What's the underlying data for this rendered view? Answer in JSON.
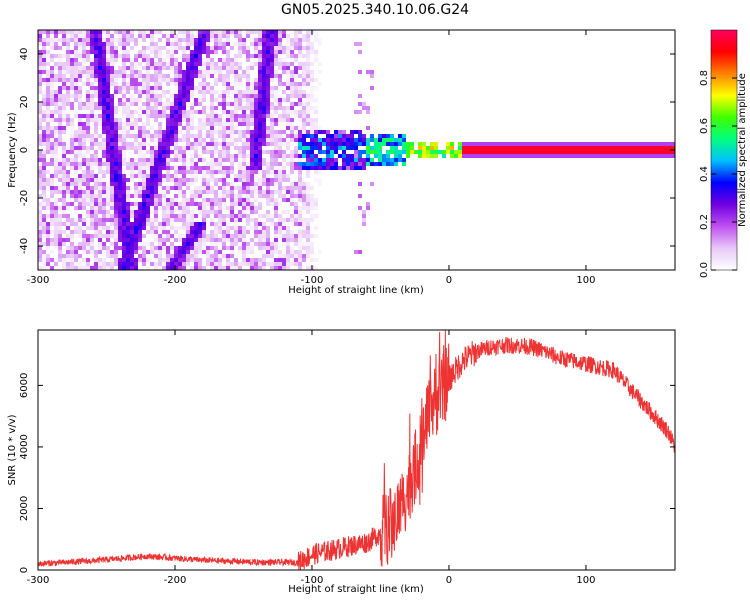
{
  "title": "GN05.2025.340.10.06.G24",
  "chart_data": [
    {
      "type": "heatmap",
      "xlabel": "Height of straight line (km)",
      "ylabel": "Frequency (Hz)",
      "xlim": [
        -300,
        165
      ],
      "ylim": [
        -50,
        50
      ],
      "xticks": [
        -300,
        -200,
        -100,
        0,
        100
      ],
      "yticks": [
        -40,
        -20,
        0,
        20,
        40
      ],
      "colorbar": {
        "label": "Normalized spectral amplitude",
        "range": [
          0,
          1
        ],
        "ticks": [
          0.0,
          0.2,
          0.4,
          0.6,
          0.8
        ],
        "colormap": [
          "#ffffff",
          "#e8c8f8",
          "#c050f0",
          "#7000e0",
          "#0000ff",
          "#00c0ff",
          "#00ff80",
          "#40ff00",
          "#ffff00",
          "#ff8000",
          "#ff0000",
          "#ff0060"
        ]
      },
      "features": [
        {
          "kind": "signal_band",
          "x_range": [
            -110,
            165
          ],
          "frequency": 0,
          "amplitude_near_line": 0.95
        },
        {
          "kind": "noise_region",
          "x_range": [
            -300,
            -100
          ],
          "frequency_range": [
            -50,
            50
          ]
        },
        {
          "kind": "streak",
          "x": [
            -258,
            -232
          ],
          "frequency": [
            50,
            -50
          ]
        },
        {
          "kind": "streak",
          "x": [
            -238,
            -178
          ],
          "frequency": [
            -50,
            50
          ]
        },
        {
          "kind": "streak",
          "x": [
            -203,
            -180
          ],
          "frequency": [
            -50,
            -30
          ]
        },
        {
          "kind": "streak",
          "x": [
            -142,
            -130
          ],
          "frequency": [
            -8,
            50
          ]
        }
      ]
    },
    {
      "type": "line",
      "xlabel": "Height of straight line (km)",
      "ylabel": "SNR (10 * v/v)",
      "xlim": [
        -300,
        165
      ],
      "ylim": [
        0,
        7800
      ],
      "xticks": [
        -300,
        -200,
        -100,
        0,
        100
      ],
      "yticks": [
        0,
        2000,
        4000,
        6000
      ],
      "color": "#ee3333",
      "x": [
        -300,
        -260,
        -220,
        -180,
        -140,
        -110,
        -100,
        -80,
        -60,
        -50,
        -40,
        -30,
        -25,
        -20,
        -15,
        -10,
        -5,
        0,
        10,
        20,
        30,
        40,
        50,
        60,
        70,
        80,
        100,
        120,
        130,
        140,
        150,
        160,
        165
      ],
      "y": [
        200,
        300,
        450,
        320,
        250,
        250,
        500,
        700,
        900,
        1200,
        1600,
        2600,
        3300,
        4000,
        5000,
        5500,
        5800,
        6200,
        6800,
        7100,
        7250,
        7300,
        7300,
        7250,
        7100,
        6900,
        6700,
        6500,
        6000,
        5500,
        5000,
        4500,
        4000
      ]
    }
  ]
}
